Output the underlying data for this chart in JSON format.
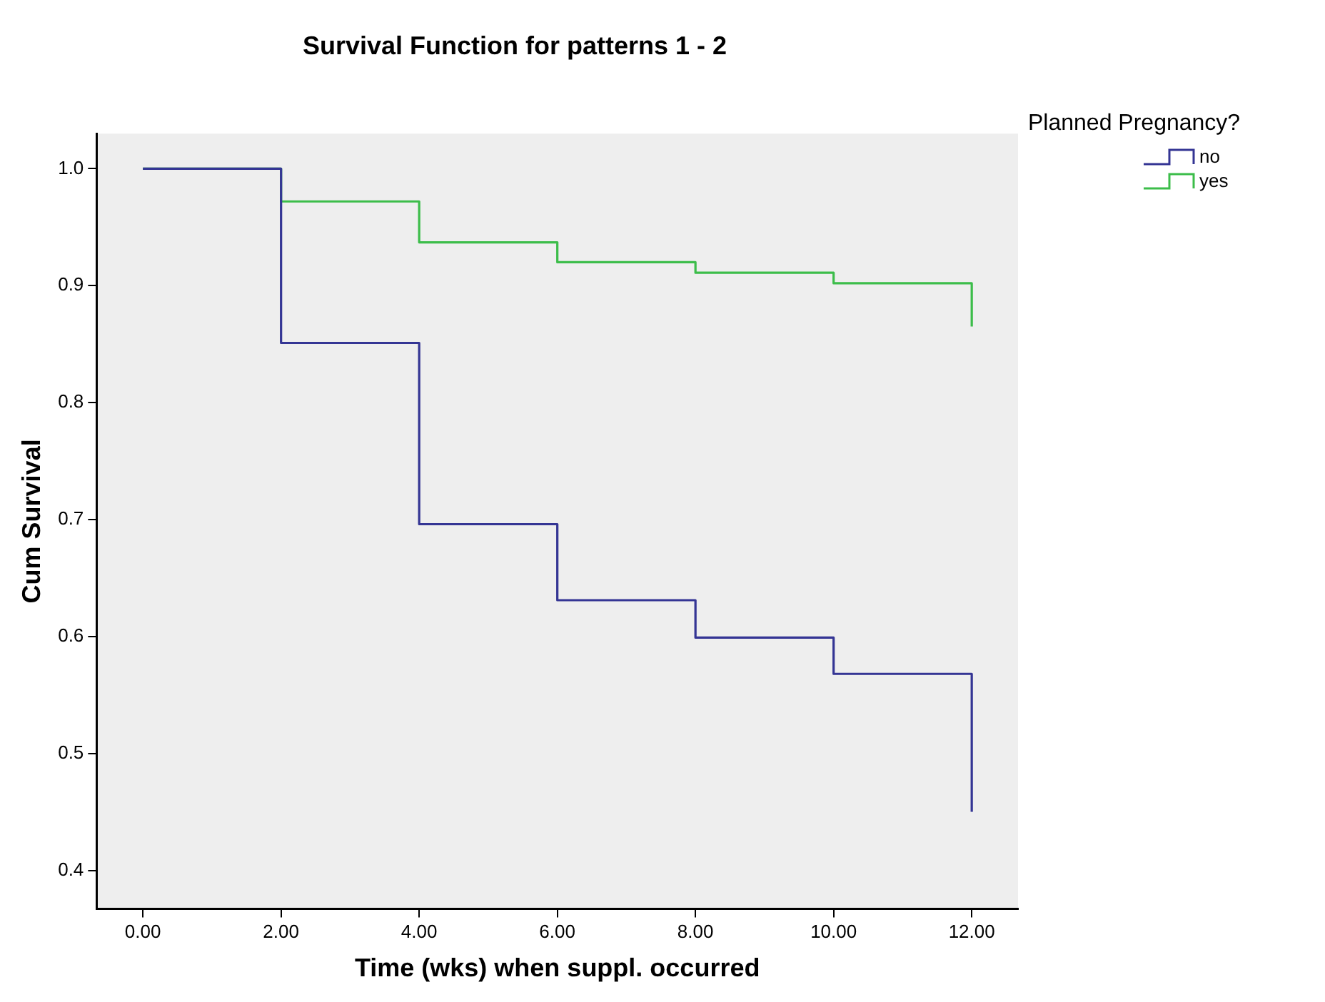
{
  "chart_data": {
    "type": "step",
    "title": "Survival Function for patterns 1 - 2",
    "xlabel": "Time (wks) when suppl. occurred",
    "ylabel": "Cum Survival",
    "legend_title": "Planned Pregnancy?",
    "x": [
      0,
      2,
      4,
      6,
      8,
      10,
      12
    ],
    "series": [
      {
        "name": "no",
        "color": "#343594",
        "values": [
          1.0,
          0.851,
          0.696,
          0.631,
          0.599,
          0.568,
          0.45
        ]
      },
      {
        "name": "yes",
        "color": "#3cbd4a",
        "values": [
          1.0,
          0.972,
          0.937,
          0.92,
          0.911,
          0.902,
          0.865
        ]
      }
    ],
    "xlim": [
      -0.67,
      12.67
    ],
    "xticks": [
      {
        "value": 0,
        "label": "0.00"
      },
      {
        "value": 2,
        "label": "2.00"
      },
      {
        "value": 4,
        "label": "4.00"
      },
      {
        "value": 6,
        "label": "6.00"
      },
      {
        "value": 8,
        "label": "8.00"
      },
      {
        "value": 10,
        "label": "10.00"
      },
      {
        "value": 12,
        "label": "12.00"
      }
    ],
    "ylim": [
      0.367,
      1.03
    ],
    "yticks": [
      {
        "value": 0.4,
        "label": "0.4"
      },
      {
        "value": 0.5,
        "label": "0.5"
      },
      {
        "value": 0.6,
        "label": "0.6"
      },
      {
        "value": 0.7,
        "label": "0.7"
      },
      {
        "value": 0.8,
        "label": "0.8"
      },
      {
        "value": 0.9,
        "label": "0.9"
      },
      {
        "value": 1.0,
        "label": "1.0"
      }
    ],
    "grid": false,
    "legend": "top right",
    "marker": "none",
    "line_style": "solid"
  }
}
